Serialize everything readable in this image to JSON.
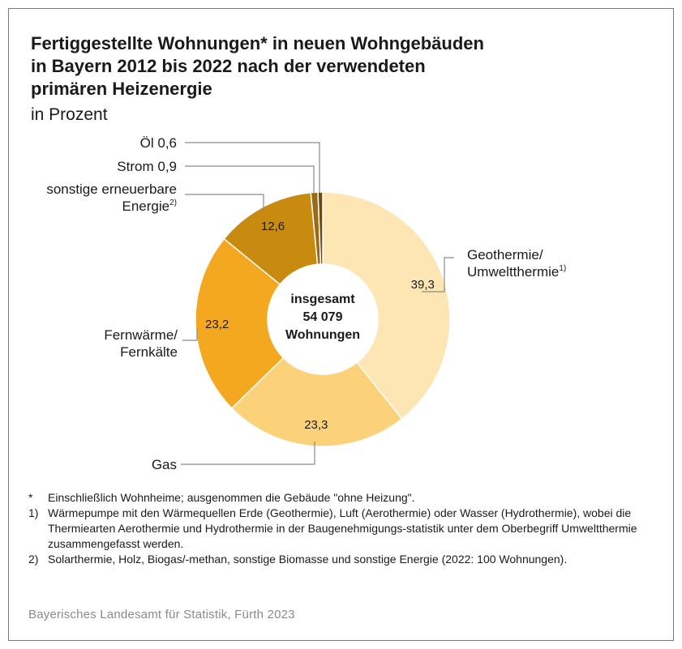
{
  "title_lines": [
    "Fertiggestellte Wohnungen* in neuen Wohngebäuden",
    "in Bayern 2012 bis 2022 nach der verwendeten",
    "primären Heizenergie"
  ],
  "subtitle": "in Prozent",
  "chart_data": {
    "type": "pie",
    "subtype": "donut",
    "center_label": [
      "insgesamt",
      "54 079",
      "Wohnungen"
    ],
    "slices": [
      {
        "label": "Geothermie/ Umweltthermie",
        "label_lines": [
          "Geothermie/",
          "Umweltthermie"
        ],
        "footnote": "1)",
        "value": 39.3,
        "value_label": "39,3",
        "color": "#fde6b4"
      },
      {
        "label": "Gas",
        "label_lines": [
          "Gas"
        ],
        "footnote": "",
        "value": 23.3,
        "value_label": "23,3",
        "color": "#fbd27a"
      },
      {
        "label": "Fernwärme/ Fernkälte",
        "label_lines": [
          "Fernwärme/",
          "Fernkälte"
        ],
        "footnote": "",
        "value": 23.2,
        "value_label": "23,2",
        "color": "#f4a81f"
      },
      {
        "label": "sonstige erneuerbare Energie",
        "label_lines": [
          "sonstige erneuerbare",
          "Energie"
        ],
        "footnote": "2)",
        "value": 12.6,
        "value_label": "12,6",
        "color": "#c98a10"
      },
      {
        "label": "Strom",
        "label_lines": [
          "Strom 0,9"
        ],
        "footnote": "",
        "value": 0.9,
        "value_label": "",
        "color": "#9c6a12"
      },
      {
        "label": "Öl",
        "label_lines": [
          "Öl 0,6"
        ],
        "footnote": "",
        "value": 0.6,
        "value_label": "",
        "color": "#6e4a0e"
      }
    ]
  },
  "footnotes": [
    {
      "mark": "*",
      "text": "Einschließlich Wohnheime; ausgenommen die Gebäude \"ohne Heizung\"."
    },
    {
      "mark": "1)",
      "text": "Wärmepumpe mit den Wärmequellen Erde (Geothermie), Luft (Aerothermie) oder Wasser (Hydrothermie), wobei die Thermiearten Aerothermie und Hydrothermie in der Baugenehmigungs-statistik unter dem Oberbegriff Umweltthermie zusammengefasst werden."
    },
    {
      "mark": "2)",
      "text": "Solarthermie, Holz, Biogas/-methan, sonstige Biomasse und sonstige Energie (2022: 100 Wohnungen)."
    }
  ],
  "source": "Bayerisches Landesamt für Statistik, Fürth 2023"
}
